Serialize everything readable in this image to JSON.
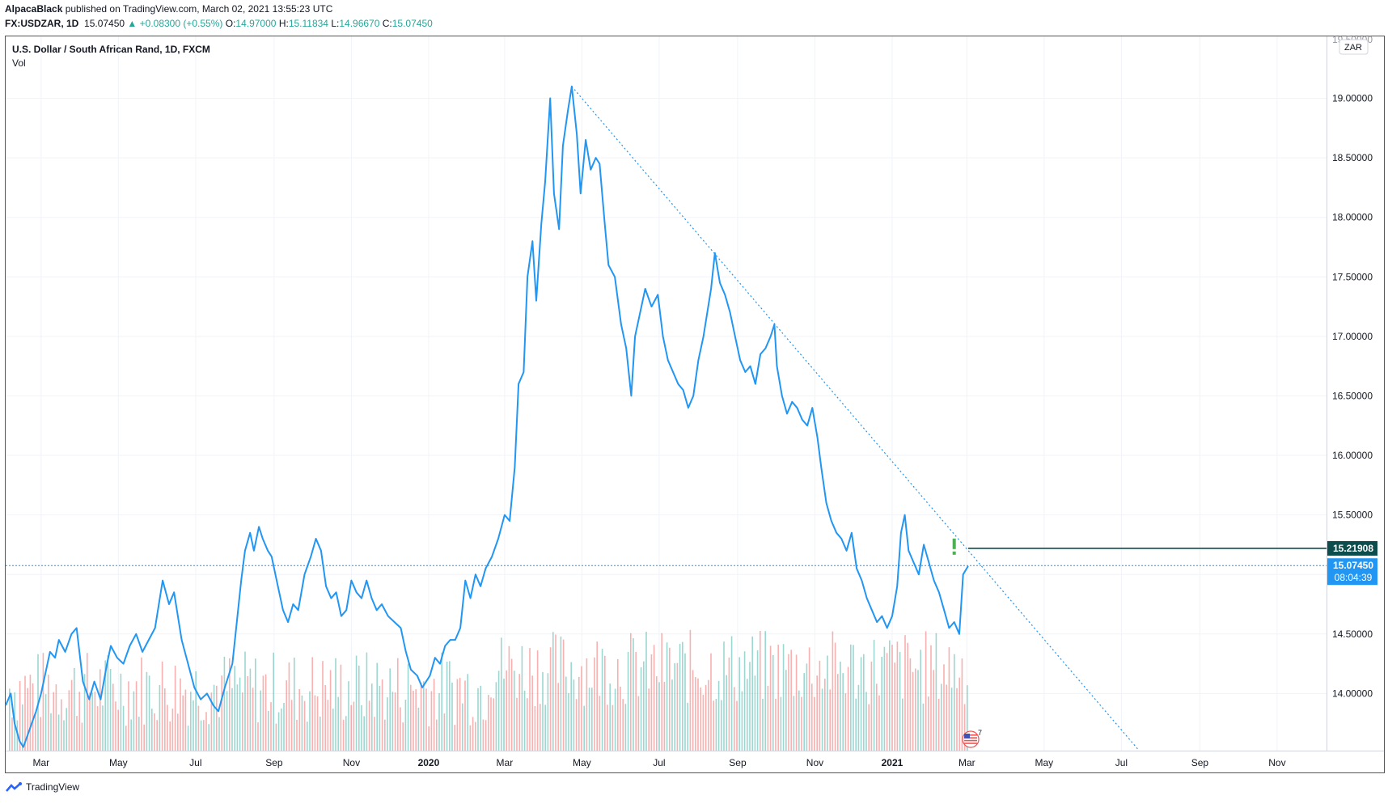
{
  "header": {
    "author": "AlpacaBlack",
    "published_text": " published on TradingView.com, March 02, 2021 13:55:23 UTC",
    "symbol": "FX:USDZAR, 1D",
    "last_price": "15.07450",
    "change": "▲ +0.08300 (+0.55%)",
    "o_label": "O:",
    "o_value": "14.97000",
    "h_label": "H:",
    "h_value": "15.11834",
    "l_label": "L:",
    "l_value": "14.96670",
    "c_label": "C:",
    "c_value": "15.07450"
  },
  "legend": {
    "title": "U.S. Dollar / South African Rand, 1D, FXCM",
    "vol": "Vol"
  },
  "price_axis": {
    "currency_badge": "ZAR",
    "top_partial_label": "19.50000",
    "marker_level": "15.21908",
    "current_price": "15.07450",
    "countdown": "08:04:39"
  },
  "footer": {
    "brand": "TradingView"
  },
  "colors": {
    "price_line": "#2196f3",
    "trend_line": "#2196f3",
    "level_line": "#0d4d4d",
    "current_badge": "#2196f3",
    "vol_up": "#26a69a",
    "vol_down": "#ef5350",
    "alert_mark": "#4caf50"
  },
  "chart_data": {
    "type": "line",
    "title": "U.S. Dollar / South African Rand, 1D, FXCM",
    "xlabel": "",
    "ylabel": "",
    "ylim": [
      13.52,
      19.52
    ],
    "y_ticks": [
      14.0,
      14.5,
      15.0,
      15.5,
      16.0,
      16.5,
      17.0,
      17.5,
      18.0,
      18.5,
      19.0
    ],
    "y_tick_labels": [
      "14.00000",
      "14.50000",
      "15.00000",
      "15.50000",
      "16.00000",
      "16.50000",
      "17.00000",
      "17.50000",
      "18.00000",
      "18.50000",
      "19.00000"
    ],
    "x_ticks": [
      "2019-03-01",
      "2019-05-01",
      "2019-07-01",
      "2019-09-01",
      "2019-11-01",
      "2020-01-01",
      "2020-03-01",
      "2020-05-01",
      "2020-07-01",
      "2020-09-01",
      "2020-11-01",
      "2021-01-01",
      "2021-03-01",
      "2021-05-01",
      "2021-07-01",
      "2021-09-01",
      "2021-11-01"
    ],
    "x_tick_labels": [
      "Mar",
      "May",
      "Jul",
      "Sep",
      "Nov",
      "2020",
      "Mar",
      "May",
      "Jul",
      "Sep",
      "Nov",
      "2021",
      "Mar",
      "May",
      "Jul",
      "Sep",
      "Nov"
    ],
    "xlim": [
      "2019-02-01",
      "2021-12-10"
    ],
    "series": [
      {
        "points": [
          [
            "2019-02-01",
            13.9
          ],
          [
            "2019-02-05",
            14.0
          ],
          [
            "2019-02-08",
            13.75
          ],
          [
            "2019-02-12",
            13.6
          ],
          [
            "2019-02-15",
            13.55
          ],
          [
            "2019-02-20",
            13.7
          ],
          [
            "2019-02-25",
            13.85
          ],
          [
            "2019-03-01",
            14.0
          ],
          [
            "2019-03-05",
            14.2
          ],
          [
            "2019-03-08",
            14.35
          ],
          [
            "2019-03-12",
            14.3
          ],
          [
            "2019-03-15",
            14.45
          ],
          [
            "2019-03-20",
            14.35
          ],
          [
            "2019-03-25",
            14.5
          ],
          [
            "2019-03-29",
            14.55
          ],
          [
            "2019-04-03",
            14.1
          ],
          [
            "2019-04-08",
            13.95
          ],
          [
            "2019-04-12",
            14.1
          ],
          [
            "2019-04-17",
            13.95
          ],
          [
            "2019-04-22",
            14.25
          ],
          [
            "2019-04-25",
            14.4
          ],
          [
            "2019-04-30",
            14.3
          ],
          [
            "2019-05-05",
            14.25
          ],
          [
            "2019-05-10",
            14.4
          ],
          [
            "2019-05-15",
            14.5
          ],
          [
            "2019-05-20",
            14.35
          ],
          [
            "2019-05-25",
            14.45
          ],
          [
            "2019-05-30",
            14.55
          ],
          [
            "2019-06-05",
            14.95
          ],
          [
            "2019-06-10",
            14.75
          ],
          [
            "2019-06-14",
            14.85
          ],
          [
            "2019-06-20",
            14.45
          ],
          [
            "2019-06-25",
            14.25
          ],
          [
            "2019-06-30",
            14.05
          ],
          [
            "2019-07-05",
            13.95
          ],
          [
            "2019-07-10",
            14.0
          ],
          [
            "2019-07-15",
            13.9
          ],
          [
            "2019-07-19",
            13.85
          ],
          [
            "2019-07-24",
            14.05
          ],
          [
            "2019-07-30",
            14.25
          ],
          [
            "2019-08-02",
            14.55
          ],
          [
            "2019-08-06",
            14.95
          ],
          [
            "2019-08-09",
            15.2
          ],
          [
            "2019-08-13",
            15.35
          ],
          [
            "2019-08-16",
            15.2
          ],
          [
            "2019-08-20",
            15.4
          ],
          [
            "2019-08-23",
            15.3
          ],
          [
            "2019-08-27",
            15.2
          ],
          [
            "2019-08-30",
            15.15
          ],
          [
            "2019-09-04",
            14.9
          ],
          [
            "2019-09-08",
            14.7
          ],
          [
            "2019-09-12",
            14.6
          ],
          [
            "2019-09-16",
            14.75
          ],
          [
            "2019-09-20",
            14.7
          ],
          [
            "2019-09-25",
            15.0
          ],
          [
            "2019-09-30",
            15.15
          ],
          [
            "2019-10-04",
            15.3
          ],
          [
            "2019-10-08",
            15.2
          ],
          [
            "2019-10-12",
            14.9
          ],
          [
            "2019-10-16",
            14.8
          ],
          [
            "2019-10-20",
            14.85
          ],
          [
            "2019-10-24",
            14.65
          ],
          [
            "2019-10-28",
            14.7
          ],
          [
            "2019-11-01",
            14.95
          ],
          [
            "2019-11-05",
            14.85
          ],
          [
            "2019-11-09",
            14.8
          ],
          [
            "2019-11-13",
            14.95
          ],
          [
            "2019-11-17",
            14.8
          ],
          [
            "2019-11-21",
            14.7
          ],
          [
            "2019-11-25",
            14.75
          ],
          [
            "2019-11-30",
            14.65
          ],
          [
            "2019-12-05",
            14.6
          ],
          [
            "2019-12-10",
            14.55
          ],
          [
            "2019-12-14",
            14.35
          ],
          [
            "2019-12-18",
            14.2
          ],
          [
            "2019-12-23",
            14.15
          ],
          [
            "2019-12-27",
            14.05
          ],
          [
            "2020-01-02",
            14.15
          ],
          [
            "2020-01-06",
            14.3
          ],
          [
            "2020-01-10",
            14.25
          ],
          [
            "2020-01-14",
            14.4
          ],
          [
            "2020-01-18",
            14.45
          ],
          [
            "2020-01-22",
            14.45
          ],
          [
            "2020-01-26",
            14.55
          ],
          [
            "2020-01-30",
            14.95
          ],
          [
            "2020-02-03",
            14.8
          ],
          [
            "2020-02-07",
            15.0
          ],
          [
            "2020-02-11",
            14.9
          ],
          [
            "2020-02-15",
            15.05
          ],
          [
            "2020-02-20",
            15.15
          ],
          [
            "2020-02-25",
            15.3
          ],
          [
            "2020-03-01",
            15.5
          ],
          [
            "2020-03-05",
            15.45
          ],
          [
            "2020-03-09",
            15.9
          ],
          [
            "2020-03-12",
            16.6
          ],
          [
            "2020-03-16",
            16.7
          ],
          [
            "2020-03-19",
            17.5
          ],
          [
            "2020-03-23",
            17.8
          ],
          [
            "2020-03-26",
            17.3
          ],
          [
            "2020-03-30",
            17.95
          ],
          [
            "2020-04-02",
            18.3
          ],
          [
            "2020-04-06",
            19.0
          ],
          [
            "2020-04-09",
            18.2
          ],
          [
            "2020-04-13",
            17.9
          ],
          [
            "2020-04-16",
            18.6
          ],
          [
            "2020-04-20",
            18.9
          ],
          [
            "2020-04-23",
            19.1
          ],
          [
            "2020-04-27",
            18.7
          ],
          [
            "2020-04-30",
            18.2
          ],
          [
            "2020-05-04",
            18.65
          ],
          [
            "2020-05-08",
            18.4
          ],
          [
            "2020-05-12",
            18.5
          ],
          [
            "2020-05-15",
            18.45
          ],
          [
            "2020-05-19",
            17.95
          ],
          [
            "2020-05-22",
            17.6
          ],
          [
            "2020-05-27",
            17.5
          ],
          [
            "2020-06-01",
            17.1
          ],
          [
            "2020-06-05",
            16.9
          ],
          [
            "2020-06-09",
            16.5
          ],
          [
            "2020-06-12",
            17.0
          ],
          [
            "2020-06-16",
            17.2
          ],
          [
            "2020-06-20",
            17.4
          ],
          [
            "2020-06-25",
            17.25
          ],
          [
            "2020-06-30",
            17.35
          ],
          [
            "2020-07-04",
            17.0
          ],
          [
            "2020-07-08",
            16.8
          ],
          [
            "2020-07-12",
            16.7
          ],
          [
            "2020-07-16",
            16.6
          ],
          [
            "2020-07-20",
            16.55
          ],
          [
            "2020-07-24",
            16.4
          ],
          [
            "2020-07-28",
            16.5
          ],
          [
            "2020-08-01",
            16.8
          ],
          [
            "2020-08-05",
            17.0
          ],
          [
            "2020-08-08",
            17.2
          ],
          [
            "2020-08-11",
            17.4
          ],
          [
            "2020-08-14",
            17.7
          ],
          [
            "2020-08-18",
            17.45
          ],
          [
            "2020-08-22",
            17.35
          ],
          [
            "2020-08-26",
            17.2
          ],
          [
            "2020-08-30",
            17.0
          ],
          [
            "2020-09-03",
            16.8
          ],
          [
            "2020-09-07",
            16.7
          ],
          [
            "2020-09-11",
            16.75
          ],
          [
            "2020-09-15",
            16.6
          ],
          [
            "2020-09-19",
            16.85
          ],
          [
            "2020-09-23",
            16.9
          ],
          [
            "2020-09-27",
            17.0
          ],
          [
            "2020-09-30",
            17.1
          ],
          [
            "2020-10-02",
            16.75
          ],
          [
            "2020-10-06",
            16.5
          ],
          [
            "2020-10-10",
            16.35
          ],
          [
            "2020-10-14",
            16.45
          ],
          [
            "2020-10-18",
            16.4
          ],
          [
            "2020-10-22",
            16.3
          ],
          [
            "2020-10-26",
            16.25
          ],
          [
            "2020-10-30",
            16.4
          ],
          [
            "2020-11-03",
            16.15
          ],
          [
            "2020-11-06",
            15.9
          ],
          [
            "2020-11-10",
            15.6
          ],
          [
            "2020-11-14",
            15.45
          ],
          [
            "2020-11-18",
            15.35
          ],
          [
            "2020-11-22",
            15.3
          ],
          [
            "2020-11-26",
            15.2
          ],
          [
            "2020-11-30",
            15.35
          ],
          [
            "2020-12-04",
            15.05
          ],
          [
            "2020-12-08",
            14.95
          ],
          [
            "2020-12-12",
            14.8
          ],
          [
            "2020-12-16",
            14.7
          ],
          [
            "2020-12-20",
            14.6
          ],
          [
            "2020-12-24",
            14.65
          ],
          [
            "2020-12-28",
            14.55
          ],
          [
            "2021-01-01",
            14.65
          ],
          [
            "2021-01-05",
            14.9
          ],
          [
            "2021-01-08",
            15.35
          ],
          [
            "2021-01-11",
            15.5
          ],
          [
            "2021-01-14",
            15.2
          ],
          [
            "2021-01-18",
            15.1
          ],
          [
            "2021-01-22",
            15.0
          ],
          [
            "2021-01-26",
            15.25
          ],
          [
            "2021-01-30",
            15.1
          ],
          [
            "2021-02-03",
            14.95
          ],
          [
            "2021-02-07",
            14.85
          ],
          [
            "2021-02-11",
            14.7
          ],
          [
            "2021-02-15",
            14.55
          ],
          [
            "2021-02-19",
            14.6
          ],
          [
            "2021-02-23",
            14.5
          ],
          [
            "2021-02-26",
            15.0
          ],
          [
            "2021-03-02",
            15.07
          ]
        ]
      }
    ],
    "trend_line": {
      "from": [
        "2020-04-23",
        19.1
      ],
      "to": [
        "2021-07-15",
        13.52
      ]
    },
    "horizontal_level": {
      "from": "2021-03-02",
      "value": 15.21908
    },
    "current_level": 15.0745
  }
}
